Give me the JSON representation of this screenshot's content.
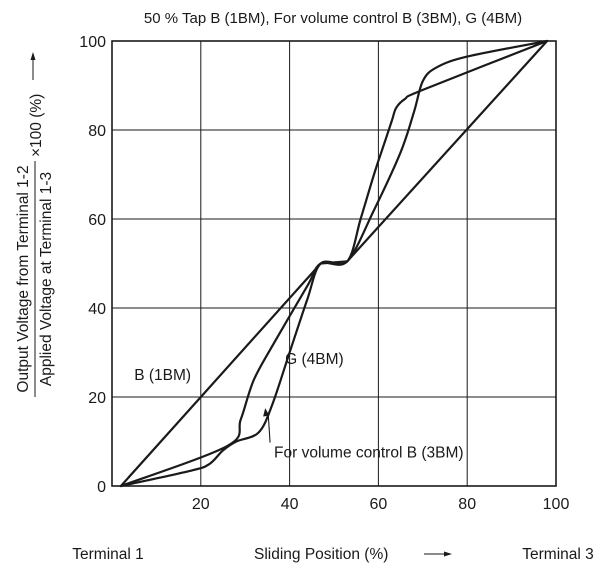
{
  "chart_data": {
    "type": "line",
    "title": "50 % Tap B (1BM), For volume control B (3BM), G (4BM)",
    "ylabel_top": "Output Voltage from Terminal 1-2",
    "ylabel_bottom": "Applied Voltage at Terminal 1-3",
    "ylabel_suffix": "×100 (%)",
    "xlabel": "Sliding Position (%)",
    "x_left_label": "Terminal 1",
    "x_right_label": "Terminal 3",
    "xlim": [
      0,
      100
    ],
    "ylim": [
      0,
      100
    ],
    "x_ticks": [
      20,
      40,
      60,
      80,
      100
    ],
    "y_ticks": [
      0,
      20,
      40,
      60,
      80,
      100
    ],
    "grid": true,
    "series": [
      {
        "name": "B (1BM)",
        "points": [
          [
            2,
            0
          ],
          [
            47,
            50
          ],
          [
            53,
            50.5
          ],
          [
            98,
            100
          ]
        ]
      },
      {
        "name": "For volume control B (3BM)",
        "points": [
          [
            2,
            0
          ],
          [
            18,
            3.5
          ],
          [
            22,
            5
          ],
          [
            25,
            8
          ],
          [
            28,
            10
          ],
          [
            33,
            12
          ],
          [
            36,
            18
          ],
          [
            40,
            30
          ],
          [
            44,
            42
          ],
          [
            47,
            50
          ],
          [
            53,
            50.5
          ],
          [
            56,
            60
          ],
          [
            59,
            70
          ],
          [
            61,
            76
          ],
          [
            63,
            82
          ],
          [
            64,
            85
          ],
          [
            66,
            87
          ],
          [
            70,
            89
          ],
          [
            98,
            100
          ]
        ]
      },
      {
        "name": "G (4BM)",
        "points": [
          [
            2,
            0
          ],
          [
            26,
            9
          ],
          [
            29,
            15
          ],
          [
            32,
            24
          ],
          [
            37,
            33
          ],
          [
            44,
            45
          ],
          [
            47,
            50
          ],
          [
            53,
            50.5
          ],
          [
            59,
            62
          ],
          [
            65,
            75
          ],
          [
            68,
            84
          ],
          [
            70,
            91
          ],
          [
            73,
            94
          ],
          [
            80,
            96.5
          ],
          [
            98,
            100
          ]
        ]
      }
    ],
    "annotations": [
      {
        "text": "B (1BM)",
        "x": 5,
        "y": 25
      },
      {
        "text": "G (4BM)",
        "x": 39,
        "y": 28.5
      },
      {
        "text": "For volume control B (3BM)",
        "x": 36.5,
        "y": 7.5,
        "target_x": 34.5,
        "target_y": 17.5
      }
    ]
  }
}
